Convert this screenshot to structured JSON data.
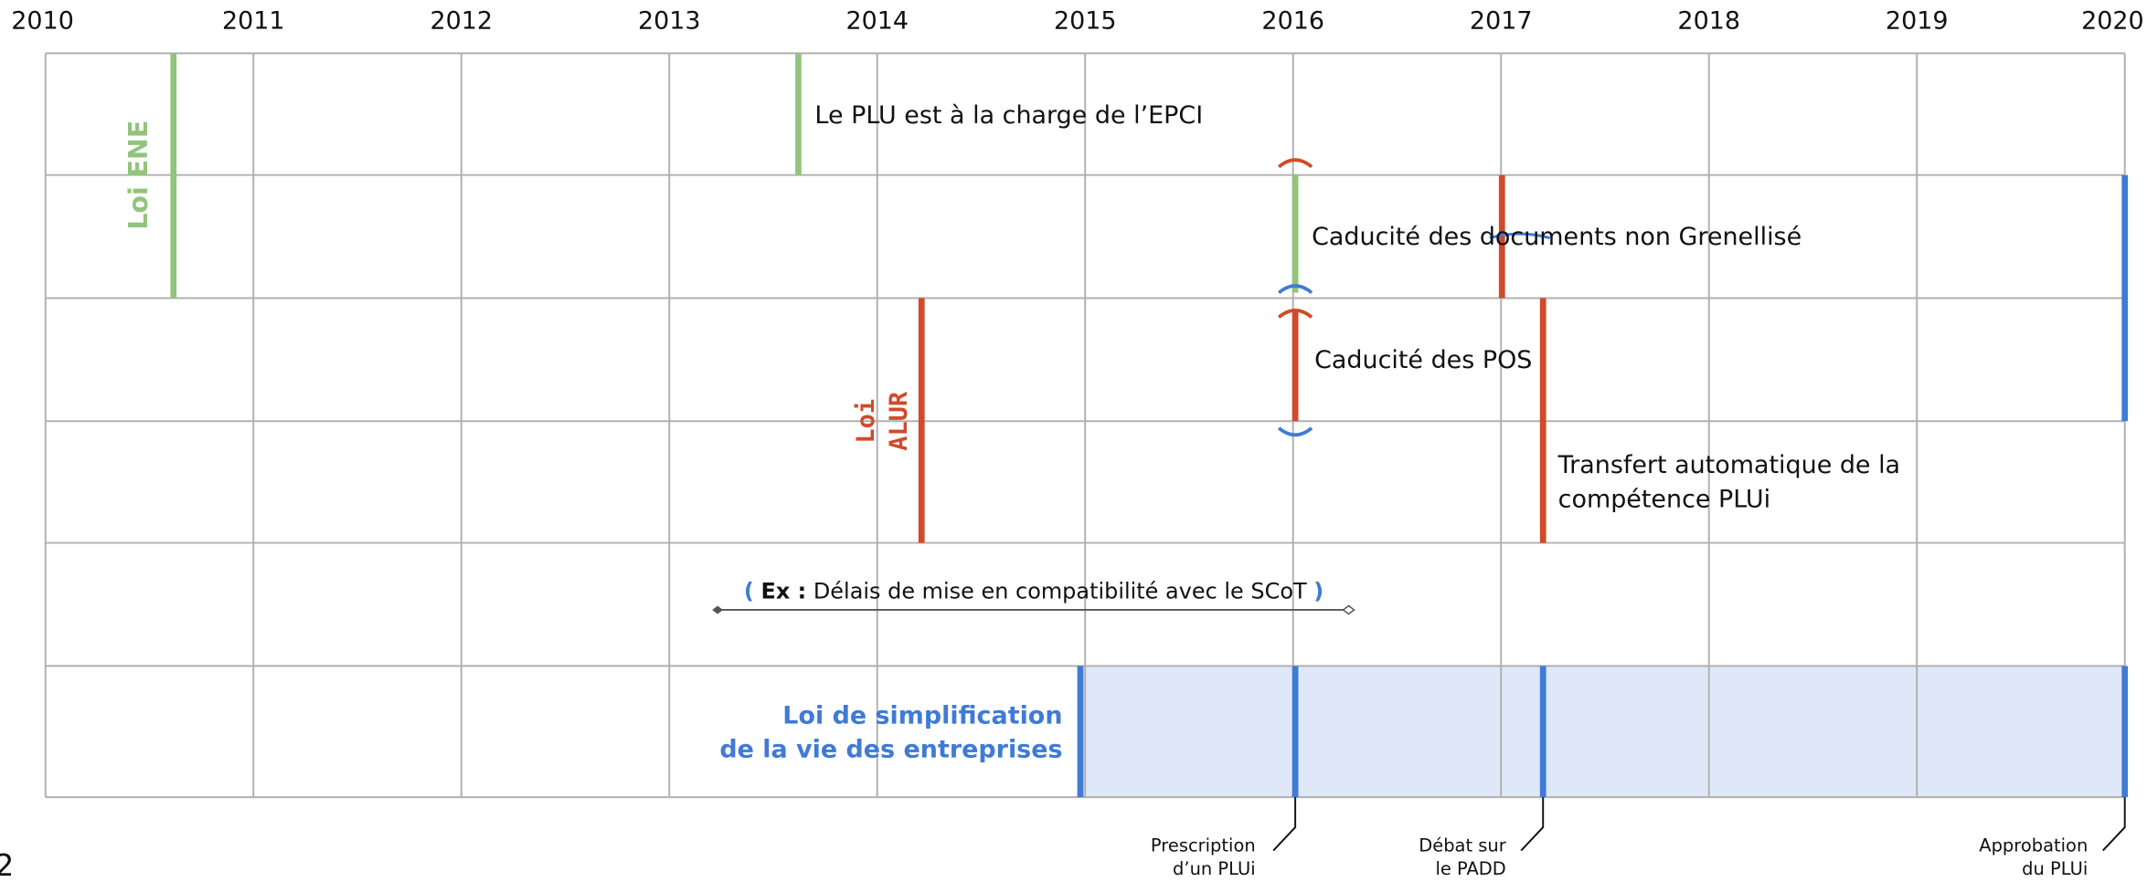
{
  "years": [
    "2010",
    "2011",
    "2012",
    "2013",
    "2014",
    "2015",
    "2016",
    "2017",
    "2018",
    "2019",
    "2020"
  ],
  "events": {
    "loi_ene": "Loi ENE",
    "plu_epci": "Le PLU est à la charge de l’EPCI",
    "caducite_docs": "Caducité des documents non Grenellisé",
    "loi_alur": [
      "Loi",
      "ALUR"
    ],
    "caducite_pos": "Caducité des POS",
    "transfert": [
      "Transfert automatique de la",
      "compétence PLUi"
    ],
    "delais": {
      "open": "(",
      "prefix": "Ex :",
      "text": "Délais de mise en compatibilité avec le SCoT",
      "close": ")"
    },
    "loi_simplification": [
      "Loi de simplification",
      "de la vie des entreprises"
    ]
  },
  "callouts": [
    [
      "Prescription",
      "d’un PLUi"
    ],
    [
      "Débat sur",
      "le PADD"
    ],
    [
      "Approbation",
      "du PLUi"
    ]
  ],
  "page_number": "2"
}
